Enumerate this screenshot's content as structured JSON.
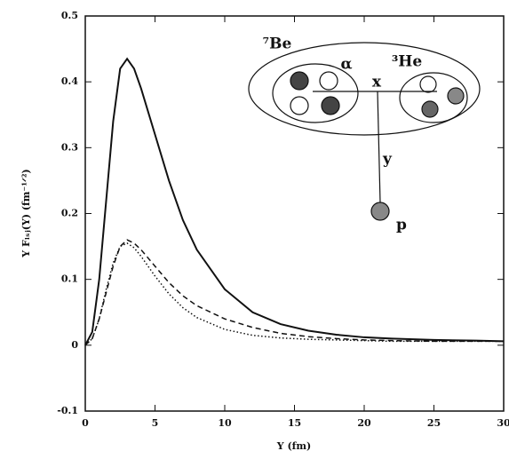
{
  "chart_data": {
    "type": "line",
    "xlabel": "Y (fm)",
    "ylabel": "Y Fₗₛⱼ(Y) (fm⁻¹ᐟ²)",
    "annotations": [
      "⁷Be",
      "α",
      "³He",
      "x",
      "y",
      "p"
    ],
    "x": [
      0,
      0.5,
      1,
      1.5,
      2,
      2.5,
      3,
      3.5,
      4,
      5,
      6,
      7,
      8,
      10,
      12,
      14,
      16,
      18,
      20,
      22,
      25,
      28,
      30
    ],
    "series": [
      {
        "color": "#111111",
        "style": "solid",
        "values": [
          0,
          0.02,
          0.1,
          0.22,
          0.34,
          0.42,
          0.435,
          0.42,
          0.39,
          0.32,
          0.25,
          0.19,
          0.145,
          0.085,
          0.05,
          0.032,
          0.022,
          0.016,
          0.012,
          0.01,
          0.008,
          0.007,
          0.006
        ]
      },
      {
        "color": "#111111",
        "style": "dashed",
        "values": [
          0,
          0.01,
          0.04,
          0.08,
          0.12,
          0.15,
          0.16,
          0.155,
          0.145,
          0.12,
          0.095,
          0.075,
          0.06,
          0.04,
          0.027,
          0.018,
          0.013,
          0.01,
          0.008,
          0.007,
          0.006,
          0.006,
          0.006
        ]
      },
      {
        "color": "#111111",
        "style": "dotted",
        "values": [
          0,
          0.01,
          0.04,
          0.085,
          0.125,
          0.15,
          0.155,
          0.148,
          0.135,
          0.105,
          0.078,
          0.057,
          0.042,
          0.024,
          0.015,
          0.011,
          0.009,
          0.008,
          0.007,
          0.006,
          0.006,
          0.006,
          0.006
        ]
      }
    ],
    "xlim": [
      0,
      30
    ],
    "xticks": [
      0,
      5,
      10,
      15,
      20,
      25,
      30
    ],
    "ylim": [
      -0.1,
      0.5
    ],
    "yticks": [
      -0.1,
      0,
      0.1,
      0.2,
      0.3,
      0.4,
      0.5
    ]
  }
}
